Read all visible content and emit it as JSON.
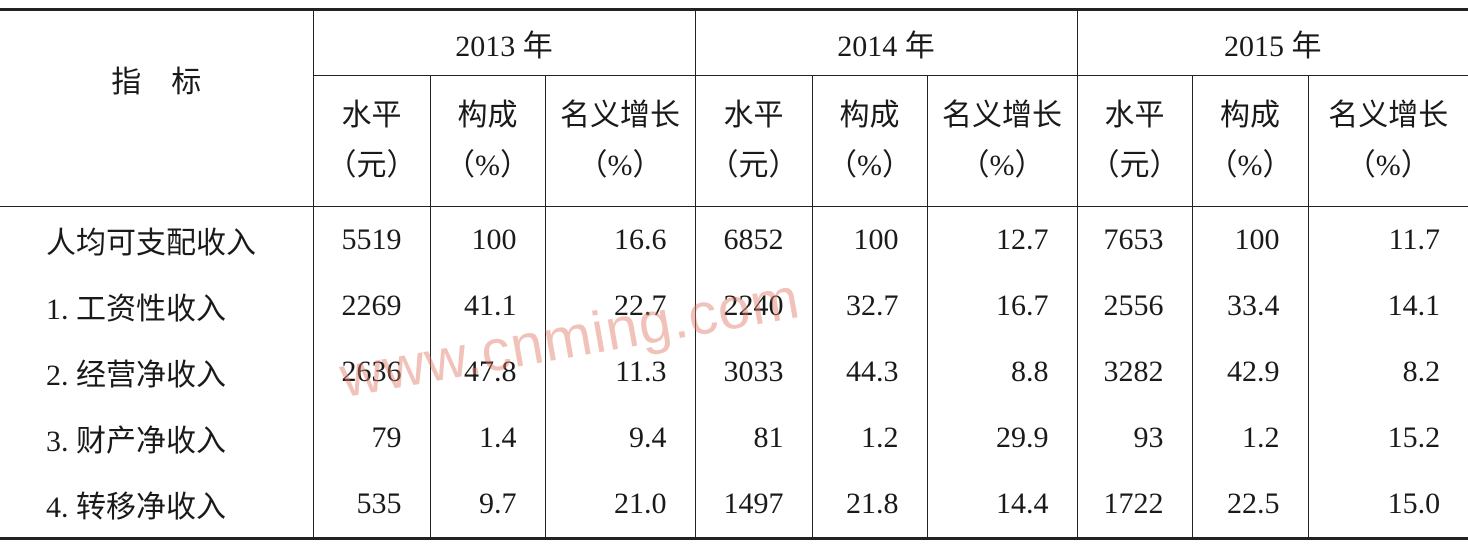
{
  "header": {
    "indicator": "指　标",
    "years": [
      "2013 年",
      "2014 年",
      "2015 年"
    ],
    "columns": [
      [
        "水平",
        "（元）"
      ],
      [
        "构成",
        "（%）"
      ],
      [
        "名义增长",
        "（%）"
      ]
    ]
  },
  "table": {
    "rows": [
      [
        "人均可支配收入",
        "5519",
        "100",
        "16.6",
        "6852",
        "100",
        "12.7",
        "7653",
        "100",
        "11.7"
      ],
      [
        "1. 工资性收入",
        "2269",
        "41.1",
        "22.7",
        "2240",
        "32.7",
        "16.7",
        "2556",
        "33.4",
        "14.1"
      ],
      [
        "2. 经营净收入",
        "2636",
        "47.8",
        "11.3",
        "3033",
        "44.3",
        "8.8",
        "3282",
        "42.9",
        "8.2"
      ],
      [
        "3. 财产净收入",
        "79",
        "1.4",
        "9.4",
        "81",
        "1.2",
        "29.9",
        "93",
        "1.2",
        "15.2"
      ],
      [
        "4. 转移净收入",
        "535",
        "9.7",
        "21.0",
        "1497",
        "21.8",
        "14.4",
        "1722",
        "22.5",
        "15.0"
      ]
    ]
  },
  "watermark": "www.cnming.com"
}
